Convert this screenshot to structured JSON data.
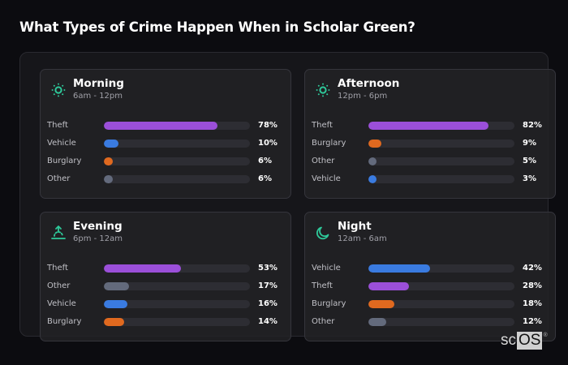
{
  "page": {
    "title": "What Types of Crime Happen When in Scholar Green?"
  },
  "colors": {
    "theft": "#9b4fd9",
    "vehicle": "#3a7be0",
    "burglary": "#e0691f",
    "other": "#636a7c",
    "accent_icon": "#2ec99a",
    "track": "#2d2d33"
  },
  "cards": [
    {
      "title": "Morning",
      "subtitle": "6am - 12pm",
      "icon": "sun-icon",
      "rows": [
        {
          "label": "Theft",
          "value": "78%",
          "pct": 78,
          "color": "#9b4fd9"
        },
        {
          "label": "Vehicle",
          "value": "10%",
          "pct": 10,
          "color": "#3a7be0"
        },
        {
          "label": "Burglary",
          "value": "6%",
          "pct": 6,
          "color": "#e0691f"
        },
        {
          "label": "Other",
          "value": "6%",
          "pct": 6,
          "color": "#636a7c"
        }
      ]
    },
    {
      "title": "Afternoon",
      "subtitle": "12pm - 6pm",
      "icon": "sun-icon",
      "rows": [
        {
          "label": "Theft",
          "value": "82%",
          "pct": 82,
          "color": "#9b4fd9"
        },
        {
          "label": "Burglary",
          "value": "9%",
          "pct": 9,
          "color": "#e0691f"
        },
        {
          "label": "Other",
          "value": "5%",
          "pct": 5,
          "color": "#636a7c"
        },
        {
          "label": "Vehicle",
          "value": "3%",
          "pct": 3,
          "color": "#3a7be0"
        }
      ]
    },
    {
      "title": "Evening",
      "subtitle": "6pm - 12am",
      "icon": "sunset-icon",
      "rows": [
        {
          "label": "Theft",
          "value": "53%",
          "pct": 53,
          "color": "#9b4fd9"
        },
        {
          "label": "Other",
          "value": "17%",
          "pct": 17,
          "color": "#636a7c"
        },
        {
          "label": "Vehicle",
          "value": "16%",
          "pct": 16,
          "color": "#3a7be0"
        },
        {
          "label": "Burglary",
          "value": "14%",
          "pct": 14,
          "color": "#e0691f"
        }
      ]
    },
    {
      "title": "Night",
      "subtitle": "12am - 6am",
      "icon": "moon-icon",
      "rows": [
        {
          "label": "Vehicle",
          "value": "42%",
          "pct": 42,
          "color": "#3a7be0"
        },
        {
          "label": "Theft",
          "value": "28%",
          "pct": 28,
          "color": "#9b4fd9"
        },
        {
          "label": "Burglary",
          "value": "18%",
          "pct": 18,
          "color": "#e0691f"
        },
        {
          "label": "Other",
          "value": "12%",
          "pct": 12,
          "color": "#636a7c"
        }
      ]
    }
  ],
  "logo": {
    "part1": "sc",
    "part2": "OS",
    "mark": "®"
  },
  "chart_data": {
    "type": "bar",
    "title": "What Types of Crime Happen When in Scholar Green?",
    "orientation": "horizontal",
    "unit": "%",
    "xlim": [
      0,
      100
    ],
    "grid": false,
    "legend": "none (labels per row)",
    "panels": [
      {
        "title": "Morning",
        "subtitle": "6am - 12pm",
        "categories": [
          "Theft",
          "Vehicle",
          "Burglary",
          "Other"
        ],
        "values": [
          78,
          10,
          6,
          6
        ]
      },
      {
        "title": "Afternoon",
        "subtitle": "12pm - 6pm",
        "categories": [
          "Theft",
          "Burglary",
          "Other",
          "Vehicle"
        ],
        "values": [
          82,
          9,
          5,
          3
        ]
      },
      {
        "title": "Evening",
        "subtitle": "6pm - 12am",
        "categories": [
          "Theft",
          "Other",
          "Vehicle",
          "Burglary"
        ],
        "values": [
          53,
          17,
          16,
          14
        ]
      },
      {
        "title": "Night",
        "subtitle": "12am - 6am",
        "categories": [
          "Vehicle",
          "Theft",
          "Burglary",
          "Other"
        ],
        "values": [
          42,
          28,
          18,
          12
        ]
      }
    ]
  }
}
